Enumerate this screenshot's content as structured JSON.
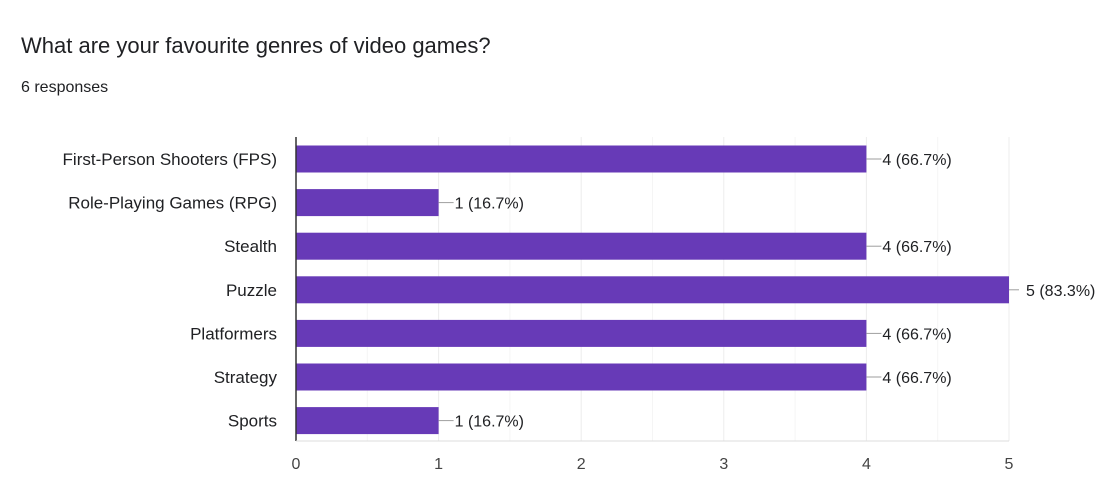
{
  "question": {
    "title": "What are your favourite genres of video games?",
    "responses": "6 responses"
  },
  "colors": {
    "bar": "#673ab7",
    "grid": "#ececec",
    "axis": "#333333",
    "leader": "#9e9e9e"
  },
  "chart_data": {
    "type": "bar",
    "orientation": "horizontal",
    "categories": [
      "First-Person Shooters (FPS)",
      "Role-Playing Games (RPG)",
      "Stealth",
      "Puzzle",
      "Platformers",
      "Strategy",
      "Sports"
    ],
    "values": [
      4,
      1,
      4,
      5,
      4,
      4,
      1
    ],
    "data_labels": [
      "4 (66.7%)",
      "1 (16.7%)",
      "4 (66.7%)",
      "5 (83.3%)",
      "4 (66.7%)",
      "4 (66.7%)",
      "1 (16.7%)"
    ],
    "xlim": [
      0,
      5
    ],
    "xticks": [
      "0",
      "1",
      "2",
      "3",
      "4",
      "5"
    ],
    "xtick_values": [
      0,
      1,
      2,
      3,
      4,
      5
    ],
    "grid": true,
    "title": "",
    "xlabel": "",
    "ylabel": ""
  }
}
